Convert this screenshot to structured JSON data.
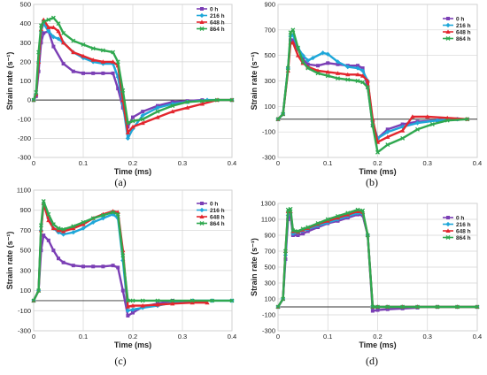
{
  "figure": {
    "panels": [
      "(a)",
      "(b)",
      "(c)",
      "(d)"
    ]
  },
  "colors": {
    "0 h": "#7b3fb5",
    "216 h": "#1ea7d9",
    "648 h": "#e3262e",
    "864 h": "#2fa84f"
  },
  "chart_data": [
    {
      "type": "line",
      "panel": "(a)",
      "xlabel": "Time (ms)",
      "ylabel": "Strain rate (s⁻¹)",
      "xlim": [
        0,
        0.4
      ],
      "ylim": [
        -300,
        500
      ],
      "xticks": [
        0,
        0.1,
        0.2,
        0.3,
        0.4
      ],
      "xtick_labels": [
        "0",
        "0.1",
        "0.2",
        "0.3",
        "0.4"
      ],
      "yticks": [
        -300,
        -200,
        -100,
        0,
        100,
        200,
        300,
        400,
        500
      ],
      "ytick_labels": [
        "-300",
        "-200",
        "-100",
        "0",
        "100",
        "200",
        "300",
        "400",
        "500"
      ],
      "grid": true,
      "legend_position": "top-right",
      "series": [
        {
          "name": "0 h",
          "x": [
            0,
            0.005,
            0.01,
            0.015,
            0.02,
            0.03,
            0.04,
            0.06,
            0.08,
            0.1,
            0.12,
            0.14,
            0.16,
            0.17,
            0.18,
            0.19,
            0.2,
            0.22,
            0.25,
            0.28,
            0.31,
            0.34
          ],
          "y": [
            0,
            20,
            150,
            300,
            350,
            360,
            280,
            190,
            150,
            140,
            140,
            140,
            140,
            60,
            -40,
            -140,
            -90,
            -60,
            -30,
            -10,
            -5,
            0
          ]
        },
        {
          "name": "216 h",
          "x": [
            0,
            0.005,
            0.01,
            0.015,
            0.02,
            0.03,
            0.04,
            0.05,
            0.06,
            0.08,
            0.1,
            0.12,
            0.14,
            0.16,
            0.17,
            0.18,
            0.19,
            0.2,
            0.22,
            0.25,
            0.28,
            0.31,
            0.35,
            0.4
          ],
          "y": [
            0,
            30,
            200,
            360,
            400,
            360,
            330,
            320,
            300,
            250,
            220,
            200,
            190,
            190,
            120,
            -20,
            -200,
            -150,
            -80,
            -40,
            -20,
            -10,
            0,
            0
          ]
        },
        {
          "name": "648 h",
          "x": [
            0,
            0.005,
            0.01,
            0.015,
            0.02,
            0.03,
            0.04,
            0.05,
            0.06,
            0.08,
            0.1,
            0.12,
            0.14,
            0.16,
            0.17,
            0.18,
            0.19,
            0.2,
            0.22,
            0.25,
            0.28,
            0.31,
            0.34,
            0.37,
            0.4
          ],
          "y": [
            0,
            30,
            200,
            370,
            420,
            380,
            380,
            360,
            300,
            250,
            230,
            210,
            200,
            200,
            180,
            0,
            -170,
            -140,
            -120,
            -90,
            -60,
            -40,
            -20,
            0,
            0
          ]
        },
        {
          "name": "864 h",
          "x": [
            0,
            0.005,
            0.01,
            0.015,
            0.02,
            0.03,
            0.04,
            0.05,
            0.06,
            0.08,
            0.1,
            0.12,
            0.14,
            0.16,
            0.17,
            0.18,
            0.19,
            0.2,
            0.22,
            0.25,
            0.28,
            0.31,
            0.34,
            0.37,
            0.4
          ],
          "y": [
            0,
            40,
            250,
            390,
            410,
            420,
            430,
            400,
            350,
            310,
            290,
            270,
            260,
            250,
            200,
            50,
            -120,
            -110,
            -100,
            -60,
            -30,
            -10,
            -5,
            0,
            0
          ]
        }
      ]
    },
    {
      "type": "line",
      "panel": "(b)",
      "xlabel": "Time (ms)",
      "ylabel": "Strain rate (s⁻¹)",
      "xlim": [
        0,
        0.4
      ],
      "ylim": [
        -300,
        900
      ],
      "xticks": [
        0,
        0.1,
        0.2,
        0.3,
        0.4
      ],
      "xtick_labels": [
        "0",
        "0.1",
        "0.2",
        "0.3",
        "0.4"
      ],
      "yticks": [
        -300,
        -100,
        100,
        300,
        500,
        700,
        900
      ],
      "ytick_labels": [
        "-300",
        "-100",
        "100",
        "300",
        "500",
        "700",
        "900"
      ],
      "grid": true,
      "legend_position": "top-right",
      "series": [
        {
          "name": "0 h",
          "x": [
            0,
            0.01,
            0.02,
            0.025,
            0.03,
            0.04,
            0.05,
            0.06,
            0.08,
            0.1,
            0.12,
            0.14,
            0.16,
            0.17,
            0.18,
            0.19,
            0.2,
            0.22,
            0.25,
            0.28,
            0.32,
            0.36
          ],
          "y": [
            0,
            40,
            400,
            620,
            620,
            550,
            470,
            430,
            420,
            440,
            430,
            420,
            420,
            400,
            250,
            -50,
            -150,
            -80,
            -40,
            -20,
            -10,
            0
          ]
        },
        {
          "name": "216 h",
          "x": [
            0,
            0.01,
            0.02,
            0.025,
            0.03,
            0.04,
            0.05,
            0.06,
            0.07,
            0.09,
            0.1,
            0.12,
            0.14,
            0.16,
            0.17,
            0.18,
            0.19,
            0.2,
            0.22,
            0.25,
            0.28,
            0.32,
            0.36
          ],
          "y": [
            0,
            40,
            400,
            650,
            660,
            560,
            500,
            460,
            480,
            520,
            510,
            450,
            410,
            400,
            380,
            300,
            -20,
            -150,
            -100,
            -60,
            -30,
            -10,
            0
          ]
        },
        {
          "name": "648 h",
          "x": [
            0,
            0.01,
            0.02,
            0.025,
            0.03,
            0.04,
            0.05,
            0.06,
            0.08,
            0.1,
            0.12,
            0.14,
            0.16,
            0.17,
            0.18,
            0.19,
            0.2,
            0.22,
            0.25,
            0.27,
            0.3,
            0.34,
            0.38
          ],
          "y": [
            0,
            40,
            380,
            600,
            600,
            500,
            440,
            410,
            380,
            370,
            360,
            350,
            350,
            340,
            300,
            0,
            -180,
            -140,
            -90,
            20,
            20,
            10,
            0
          ]
        },
        {
          "name": "864 h",
          "x": [
            0,
            0.01,
            0.02,
            0.025,
            0.03,
            0.04,
            0.05,
            0.06,
            0.08,
            0.1,
            0.12,
            0.14,
            0.16,
            0.17,
            0.18,
            0.19,
            0.2,
            0.22,
            0.25,
            0.28,
            0.31,
            0.34,
            0.38
          ],
          "y": [
            0,
            40,
            400,
            680,
            700,
            560,
            450,
            400,
            360,
            340,
            320,
            310,
            300,
            290,
            250,
            -50,
            -260,
            -200,
            -150,
            -80,
            -40,
            -10,
            0
          ]
        }
      ]
    },
    {
      "type": "line",
      "panel": "(c)",
      "xlabel": "Time (ms)",
      "ylabel": "Strain rate (s⁻¹)",
      "xlim": [
        0,
        0.4
      ],
      "ylim": [
        -300,
        1100
      ],
      "xticks": [
        0,
        0.1,
        0.2,
        0.3,
        0.4
      ],
      "xtick_labels": [
        "0",
        "0.1",
        "0.2",
        "0.3",
        "0.4"
      ],
      "yticks": [
        -300,
        -100,
        100,
        300,
        500,
        700,
        900,
        1100
      ],
      "ytick_labels": [
        "-300",
        "-100",
        "100",
        "300",
        "500",
        "700",
        "900",
        "1100"
      ],
      "grid": true,
      "legend_position": "top-right",
      "series": [
        {
          "name": "0 h",
          "x": [
            0,
            0.01,
            0.015,
            0.02,
            0.03,
            0.04,
            0.05,
            0.06,
            0.08,
            0.1,
            0.12,
            0.14,
            0.16,
            0.17,
            0.18,
            0.19,
            0.2,
            0.22,
            0.25,
            0.28
          ],
          "y": [
            0,
            100,
            500,
            650,
            600,
            500,
            420,
            380,
            350,
            340,
            340,
            340,
            350,
            330,
            100,
            -150,
            -120,
            -60,
            -30,
            0
          ]
        },
        {
          "name": "216 h",
          "x": [
            0,
            0.01,
            0.015,
            0.02,
            0.03,
            0.04,
            0.05,
            0.06,
            0.08,
            0.1,
            0.12,
            0.14,
            0.16,
            0.17,
            0.18,
            0.19,
            0.2,
            0.22,
            0.25,
            0.28,
            0.32,
            0.36,
            0.4
          ],
          "y": [
            0,
            100,
            700,
            960,
            820,
            720,
            680,
            660,
            680,
            720,
            780,
            820,
            860,
            820,
            400,
            -100,
            -90,
            -70,
            -50,
            -20,
            0,
            0,
            0
          ]
        },
        {
          "name": "648 h",
          "x": [
            0,
            0.01,
            0.015,
            0.02,
            0.03,
            0.04,
            0.05,
            0.06,
            0.08,
            0.1,
            0.12,
            0.14,
            0.16,
            0.17,
            0.18,
            0.19,
            0.2,
            0.22,
            0.25,
            0.28,
            0.32,
            0.35
          ],
          "y": [
            0,
            100,
            700,
            970,
            800,
            720,
            700,
            690,
            720,
            760,
            820,
            860,
            890,
            880,
            500,
            -60,
            -50,
            -50,
            -40,
            -30,
            -20,
            -20
          ]
        },
        {
          "name": "864 h",
          "x": [
            0,
            0.01,
            0.015,
            0.02,
            0.03,
            0.04,
            0.05,
            0.06,
            0.08,
            0.1,
            0.12,
            0.14,
            0.16,
            0.17,
            0.18,
            0.19,
            0.2,
            0.22,
            0.25,
            0.28,
            0.32,
            0.36,
            0.4
          ],
          "y": [
            0,
            100,
            750,
            990,
            860,
            760,
            720,
            710,
            740,
            780,
            820,
            850,
            880,
            860,
            450,
            0,
            0,
            0,
            0,
            0,
            0,
            0,
            0
          ]
        }
      ]
    },
    {
      "type": "line",
      "panel": "(d)",
      "xlabel": "Time (ms)",
      "ylabel": "Strain rate (s⁻¹)",
      "xlim": [
        0,
        0.4
      ],
      "ylim": [
        -300,
        1300
      ],
      "xticks": [
        0,
        0.1,
        0.2,
        0.3,
        0.4
      ],
      "xtick_labels": [
        "0",
        "0.1",
        "0.2",
        "0.3",
        "0.4"
      ],
      "yticks": [
        -300,
        -100,
        100,
        300,
        500,
        700,
        900,
        1100,
        1300
      ],
      "ytick_labels": [
        "-300",
        "-100",
        "100",
        "300",
        "500",
        "700",
        "900",
        "1100",
        "1300"
      ],
      "grid": true,
      "legend_position": "top-right",
      "series": [
        {
          "name": "0 h",
          "x": [
            0,
            0.01,
            0.015,
            0.02,
            0.025,
            0.03,
            0.04,
            0.05,
            0.06,
            0.08,
            0.1,
            0.12,
            0.14,
            0.16,
            0.17,
            0.18,
            0.19,
            0.2,
            0.22,
            0.25,
            0.28
          ],
          "y": [
            0,
            100,
            600,
            1100,
            1150,
            900,
            900,
            920,
            950,
            1000,
            1050,
            1080,
            1120,
            1160,
            1150,
            900,
            -50,
            -40,
            -30,
            -20,
            -10
          ]
        },
        {
          "name": "216 h",
          "x": [
            0,
            0.01,
            0.015,
            0.02,
            0.025,
            0.03,
            0.04,
            0.05,
            0.06,
            0.08,
            0.1,
            0.12,
            0.14,
            0.16,
            0.17,
            0.18,
            0.19,
            0.2,
            0.22,
            0.25,
            0.28,
            0.32,
            0.36,
            0.4
          ],
          "y": [
            0,
            100,
            650,
            1150,
            1180,
            920,
            930,
            960,
            980,
            1020,
            1060,
            1100,
            1140,
            1180,
            1170,
            900,
            0,
            0,
            0,
            0,
            0,
            0,
            0,
            0
          ]
        },
        {
          "name": "648 h",
          "x": [
            0,
            0.01,
            0.015,
            0.02,
            0.025,
            0.03,
            0.04,
            0.05,
            0.06,
            0.08,
            0.1,
            0.12,
            0.14,
            0.16,
            0.17,
            0.18,
            0.19,
            0.2,
            0.22,
            0.25,
            0.28,
            0.32,
            0.36,
            0.4
          ],
          "y": [
            0,
            100,
            700,
            1200,
            1200,
            950,
            940,
            970,
            990,
            1040,
            1080,
            1120,
            1160,
            1200,
            1190,
            900,
            0,
            0,
            0,
            0,
            0,
            0,
            0,
            0
          ]
        },
        {
          "name": "864 h",
          "x": [
            0,
            0.01,
            0.015,
            0.02,
            0.025,
            0.03,
            0.04,
            0.05,
            0.06,
            0.08,
            0.1,
            0.12,
            0.14,
            0.16,
            0.17,
            0.18,
            0.19,
            0.2,
            0.22,
            0.25,
            0.28,
            0.32,
            0.36,
            0.4
          ],
          "y": [
            0,
            100,
            700,
            1220,
            1230,
            960,
            950,
            980,
            1000,
            1050,
            1100,
            1140,
            1180,
            1220,
            1210,
            900,
            0,
            0,
            0,
            0,
            0,
            0,
            0,
            0
          ]
        }
      ]
    }
  ]
}
